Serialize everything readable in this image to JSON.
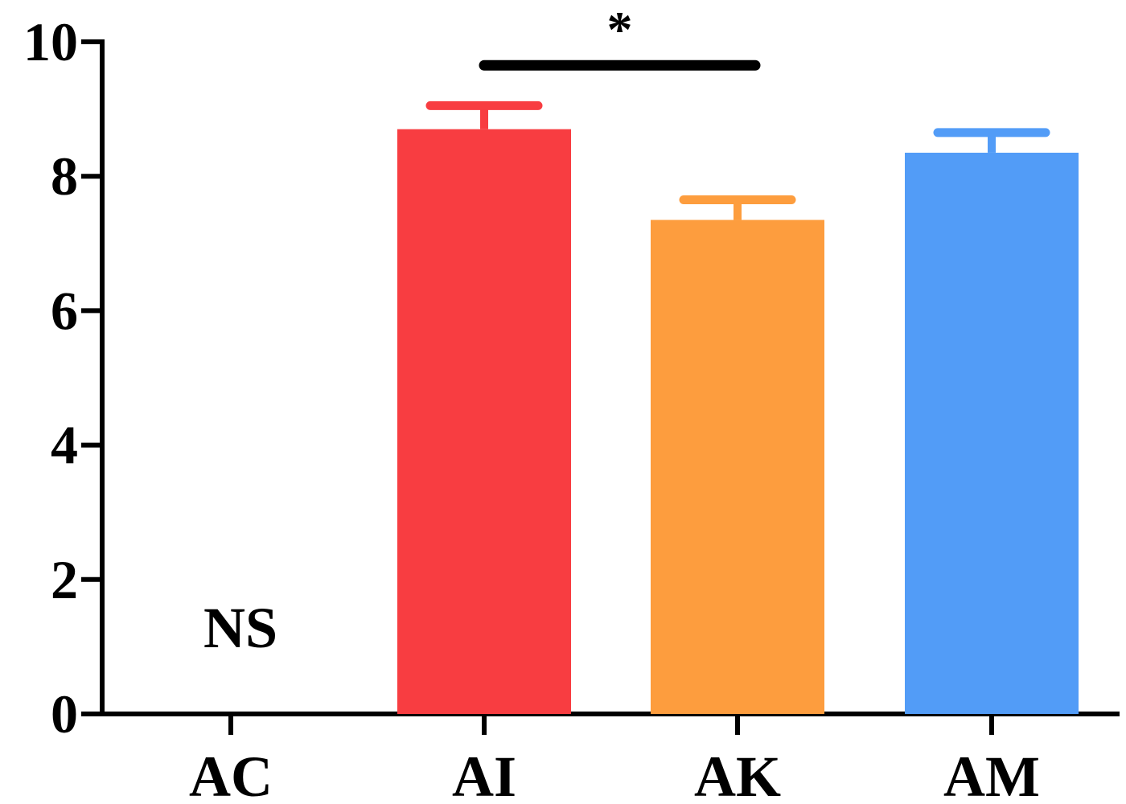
{
  "chart_data": {
    "type": "bar",
    "title": "",
    "xlabel": "",
    "ylabel": "",
    "categories": [
      "AC",
      "AI",
      "AK",
      "AM"
    ],
    "values": [
      0,
      8.7,
      7.35,
      8.35
    ],
    "errors": [
      0,
      0.35,
      0.3,
      0.3
    ],
    "colors": [
      "#ffffff",
      "#f83d41",
      "#fd9d3e",
      "#529cf7"
    ],
    "ylim": [
      0,
      10
    ],
    "yticks": [
      "0",
      "2",
      "4",
      "6",
      "8",
      "10"
    ],
    "grid": false,
    "annotations": {
      "ns_label": "NS",
      "significance": {
        "from": "AI",
        "to": "AK",
        "symbol": "*",
        "y": 9.65
      }
    }
  }
}
